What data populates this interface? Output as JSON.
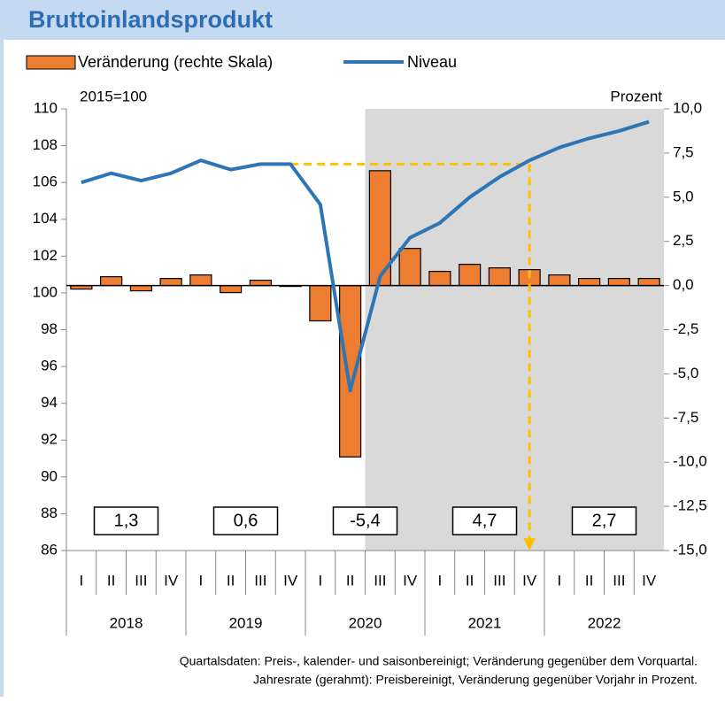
{
  "chart_data": {
    "type": "combo",
    "title": "Bruttoinlandsprodukt",
    "categories": [
      "I",
      "II",
      "III",
      "IV",
      "I",
      "II",
      "III",
      "IV",
      "I",
      "II",
      "III",
      "IV",
      "I",
      "II",
      "III",
      "IV",
      "I",
      "II",
      "III",
      "IV"
    ],
    "groups": [
      "2018",
      "2019",
      "2020",
      "2021",
      "2022"
    ],
    "series": [
      {
        "name": "Veränderung (rechte Skala)",
        "type": "bar",
        "axis": "y2",
        "color": "#ed7d31",
        "values": [
          -0.2,
          0.5,
          -0.3,
          0.4,
          0.6,
          -0.4,
          0.3,
          0.0,
          -2.0,
          -9.7,
          6.5,
          2.1,
          0.8,
          1.2,
          1.0,
          0.9,
          0.6,
          0.4,
          0.4,
          0.4
        ]
      },
      {
        "name": "Niveau",
        "type": "line",
        "color": "#2e75b6",
        "values": [
          106.0,
          106.5,
          106.1,
          106.5,
          107.2,
          106.7,
          107.0,
          107.0,
          104.8,
          94.7,
          100.9,
          103.0,
          103.8,
          105.2,
          106.3,
          107.2,
          107.9,
          108.4,
          108.8,
          109.3
        ]
      }
    ],
    "annual_rates": {
      "values": [
        1.3,
        0.6,
        -5.4,
        4.7,
        2.7
      ],
      "value_labels": [
        "1,3",
        "0,6",
        "-5,4",
        "4,7",
        "2,7"
      ]
    },
    "ylabel": "2015=100",
    "y2label": "Prozent",
    "ylim": [
      86,
      110
    ],
    "yticks": [
      86,
      88,
      90,
      92,
      94,
      96,
      98,
      100,
      102,
      104,
      106,
      108,
      110
    ],
    "y2lim": [
      -15,
      10
    ],
    "y2ticks": [
      {
        "value": -15,
        "label": "-15,0"
      },
      {
        "value": -12.5,
        "label": "-12,5"
      },
      {
        "value": -10,
        "label": "-10,0"
      },
      {
        "value": -7.5,
        "label": "-7,5"
      },
      {
        "value": -5,
        "label": "-5,0"
      },
      {
        "value": -2.5,
        "label": "-2,5"
      },
      {
        "value": 0,
        "label": "0,0"
      },
      {
        "value": 2.5,
        "label": "2,5"
      },
      {
        "value": 5,
        "label": "5,0"
      },
      {
        "value": 7.5,
        "label": "7,5"
      },
      {
        "value": 10,
        "label": "10,0"
      }
    ],
    "footnote": [
      "Quartalsdaten: Preis-, kalender- und saisonbereinigt; Veränderung gegenüber dem Vorquartal.",
      "Jahresrate (gerahmt): Preisbereinigt, Veränderung gegenüber Vorjahr in Prozent."
    ]
  }
}
